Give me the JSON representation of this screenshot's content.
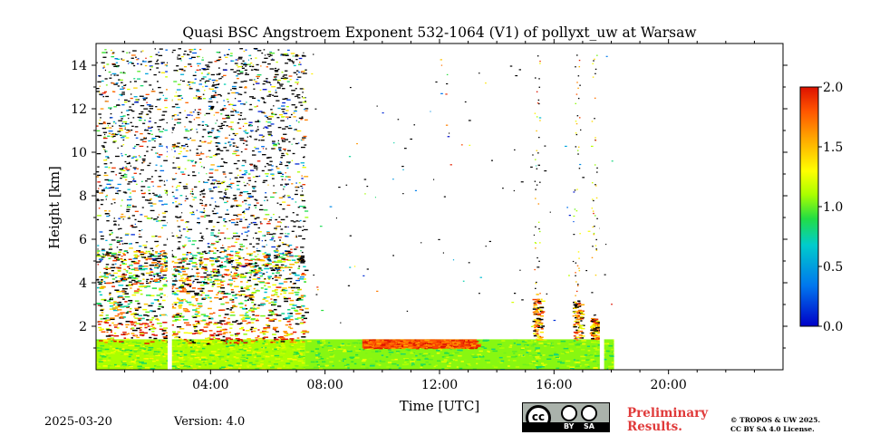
{
  "chart_data": {
    "type": "heatmap",
    "title": "Quasi BSC Angstroem Exponent 532-1064 (V1) of pollyxt_uw at Warsaw",
    "xlabel": "Time [UTC]",
    "ylabel": "Height [km]",
    "x_range_hours": [
      0,
      24
    ],
    "y_range_km": [
      0,
      15
    ],
    "x_ticks": [
      {
        "hour": 4,
        "label": "04:00"
      },
      {
        "hour": 8,
        "label": "08:00"
      },
      {
        "hour": 12,
        "label": "12:00"
      },
      {
        "hour": 16,
        "label": "16:00"
      },
      {
        "hour": 20,
        "label": "20:00"
      }
    ],
    "y_ticks": [
      {
        "km": 2,
        "label": "2"
      },
      {
        "km": 4,
        "label": "4"
      },
      {
        "km": 6,
        "label": "6"
      },
      {
        "km": 8,
        "label": "8"
      },
      {
        "km": 10,
        "label": "10"
      },
      {
        "km": 12,
        "label": "12"
      },
      {
        "km": 14,
        "label": "14"
      }
    ],
    "colorbar": {
      "range": [
        0.0,
        2.0
      ],
      "ticks": [
        {
          "value": 0.0,
          "label": "0.0"
        },
        {
          "value": 0.5,
          "label": "0.5"
        },
        {
          "value": 1.0,
          "label": "1.0"
        },
        {
          "value": 1.5,
          "label": "1.5"
        },
        {
          "value": 2.0,
          "label": "2.0"
        }
      ],
      "colormap": "jet"
    },
    "data_end_hour": 18.1,
    "gaps_hours": [
      [
        2.5,
        2.65
      ],
      [
        17.6,
        17.75
      ]
    ],
    "layers": [
      {
        "from_hour": 0.0,
        "to_hour": 7.3,
        "bottom_km": 0.0,
        "top_km": 1.4,
        "value": 1.1
      },
      {
        "from_hour": 0.0,
        "to_hour": 7.3,
        "bottom_km": 1.2,
        "top_km": 2.3,
        "value": 1.75
      },
      {
        "from_hour": 0.0,
        "to_hour": 7.3,
        "bottom_km": 2.3,
        "top_km": 5.5,
        "value": 1.3
      },
      {
        "from_hour": 7.3,
        "to_hour": 18.1,
        "bottom_km": 0.0,
        "top_km": 1.4,
        "value": 1.05
      },
      {
        "from_hour": 9.3,
        "to_hour": 13.3,
        "bottom_km": 1.0,
        "top_km": 1.4,
        "value": 1.8
      }
    ],
    "plumes": [
      {
        "hour": 15.4,
        "top_km": 3.5
      },
      {
        "hour": 16.8,
        "top_km": 3.2
      },
      {
        "hour": 17.4,
        "top_km": 2.4
      }
    ]
  },
  "footer": {
    "date": "2025-03-20",
    "version": "Version: 4.0",
    "license_by": "BY",
    "license_sa": "SA",
    "license_cc": "cc",
    "preliminary_line1": "Preliminary",
    "preliminary_line2": "Results.",
    "copyright_line1": "© TROPOS & UW 2025.",
    "copyright_line2": "CC BY SA 4.0 License."
  }
}
